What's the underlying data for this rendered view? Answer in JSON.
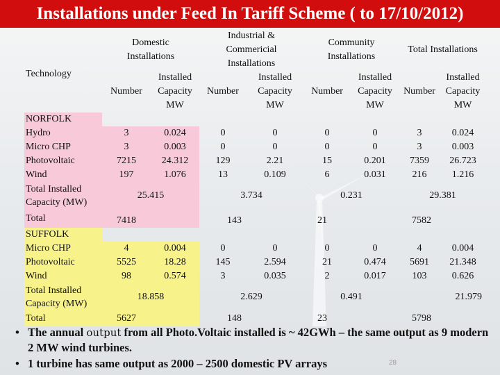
{
  "title": "Installations under Feed In Tariff Scheme ( to 17/10/2012)",
  "header": {
    "technology": "Technology",
    "domestic": "Domestic Installations",
    "industrial": "Industrial & Commericial Installations",
    "community": "Community Installations",
    "total": "Total Installations",
    "number": "Number",
    "capacity_line1": "Installed",
    "capacity_line2": "Capacity",
    "capacity_line3": "MW"
  },
  "norfolk": {
    "name": "NORFOLK",
    "rows": [
      {
        "label": "Hydro",
        "values": [
          "3",
          "0.024",
          "0",
          "0",
          "0",
          "0",
          "3",
          "0.024"
        ]
      },
      {
        "label": "Micro CHP",
        "values": [
          "3",
          "0.003",
          "0",
          "0",
          "0",
          "0",
          "3",
          "0.003"
        ]
      },
      {
        "label": "Photovoltaic",
        "values": [
          "7215",
          "24.312",
          "129",
          "2.21",
          "15",
          "0.201",
          "7359",
          "26.723"
        ]
      },
      {
        "label": "Wind",
        "values": [
          "197",
          "1.076",
          "13",
          "0.109",
          "6",
          "0.031",
          "216",
          "1.216"
        ]
      }
    ],
    "total_capacity_label_1": "Total Installed",
    "total_capacity_label_2": "Capacity (MW)",
    "total_capacity": [
      "25.415",
      "3.734",
      "0.231",
      "29.381"
    ],
    "total_label": "Total",
    "total_number": [
      "7418",
      "143",
      "21",
      "7582"
    ]
  },
  "suffolk": {
    "name": "SUFFOLK",
    "rows": [
      {
        "label": "Micro CHP",
        "values": [
          "4",
          "0.004",
          "0",
          "0",
          "0",
          "0",
          "4",
          "0.004"
        ]
      },
      {
        "label": "Photovoltaic",
        "values": [
          "5525",
          "18.28",
          "145",
          "2.594",
          "21",
          "0.474",
          "5691",
          "21.348"
        ]
      },
      {
        "label": "Wind",
        "values": [
          "98",
          "0.574",
          "3",
          "0.035",
          "2",
          "0.017",
          "103",
          "0.626"
        ]
      }
    ],
    "total_capacity_label_1": "Total Installed",
    "total_capacity_label_2": "Capacity (MW)",
    "total_capacity": [
      "18.858",
      "2.629",
      "0.491",
      "21.979"
    ],
    "total_label": "Total",
    "total_number": [
      "5627",
      "148",
      "23",
      "5798"
    ]
  },
  "bullets": {
    "b1_pre": "The annual ",
    "b1_output": "output",
    "b1_post": " from all Photo.Voltaic installed is ~ 42GWh – the same output as 9 modern 2 MW wind turbines.",
    "b2": "1 turbine has same output as 2000 – 2500 domestic PV arrays"
  },
  "page_number": "28"
}
